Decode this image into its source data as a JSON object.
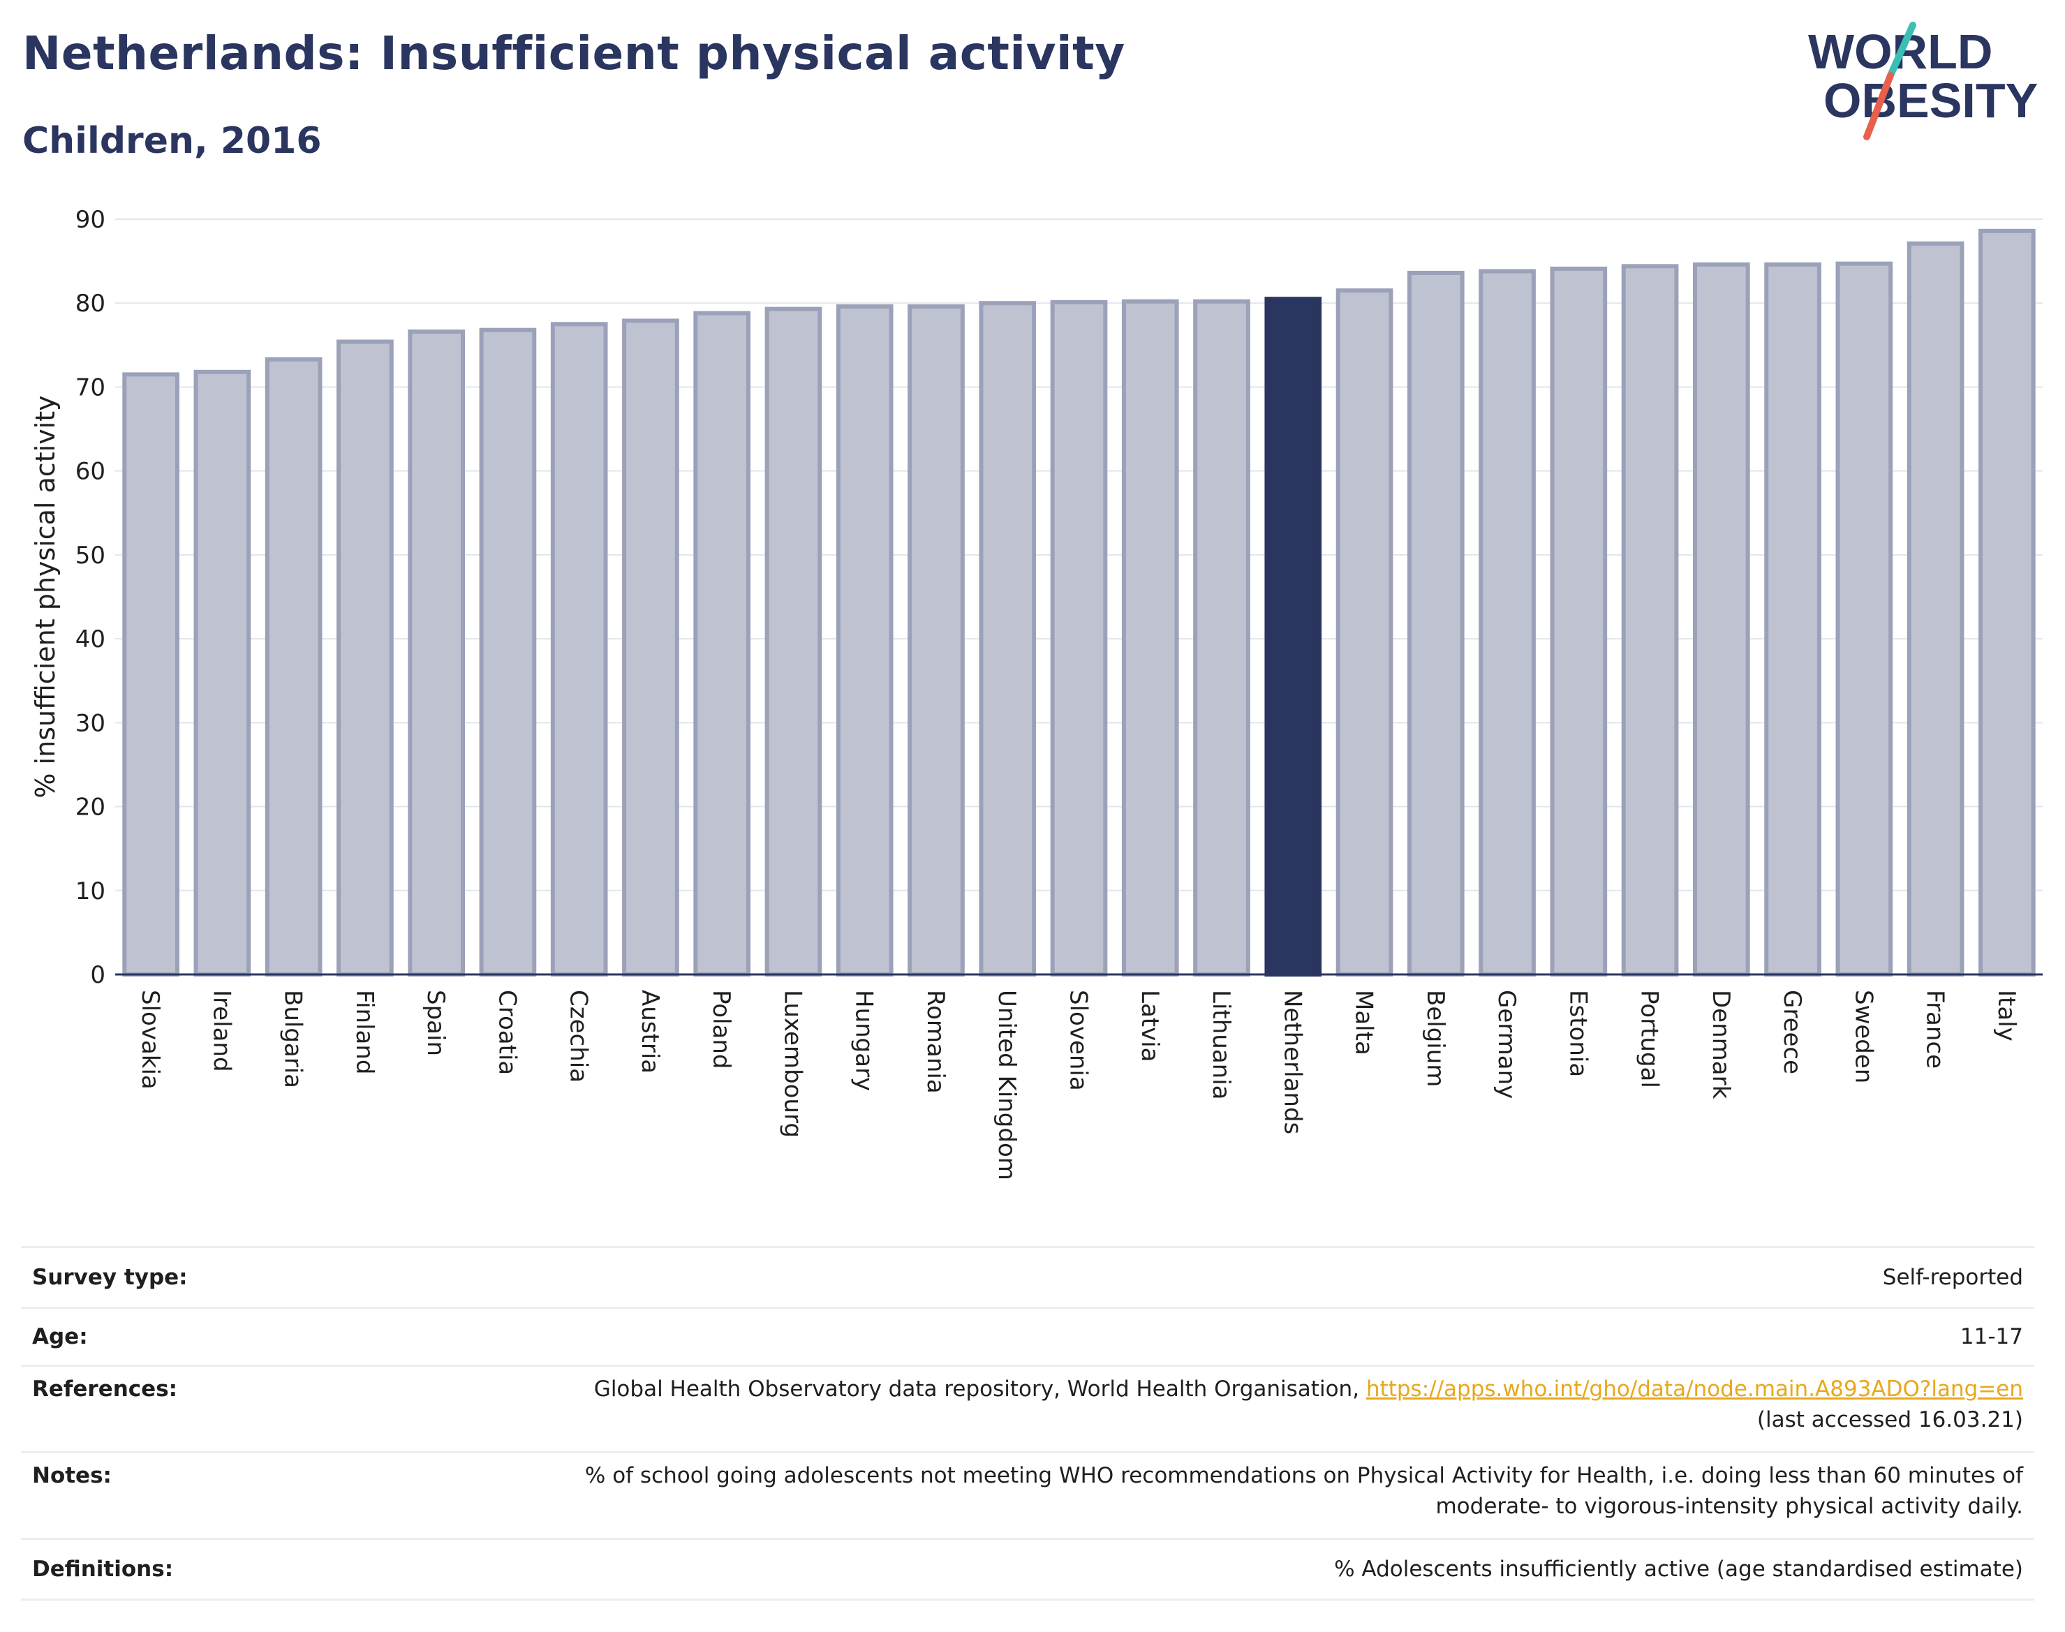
{
  "header": {
    "title": "Netherlands: Insufficient physical activity",
    "subtitle": "Children, 2016"
  },
  "logo": {
    "line1": "WORLD",
    "line2": "OBESITY",
    "text_color": "#2a3560",
    "slash_top": "#3bbfb5",
    "slash_bottom": "#e8604c"
  },
  "colors": {
    "bar": "#bfc2d0",
    "bar_edge": "#9ba1b8",
    "highlight": "#2a3560",
    "grid": "#e3e5ec",
    "axis": "#2a3560"
  },
  "chart_data": {
    "type": "bar",
    "title": "Netherlands: Insufficient physical activity",
    "subtitle": "Children, 2016",
    "ylabel": "% insufficient physical activity",
    "xlabel": "",
    "ylim": [
      0,
      90
    ],
    "yticks": [
      0,
      10,
      20,
      30,
      40,
      50,
      60,
      70,
      80,
      90
    ],
    "grid": true,
    "highlight": "Netherlands",
    "categories": [
      "Slovakia",
      "Ireland",
      "Bulgaria",
      "Finland",
      "Spain",
      "Croatia",
      "Czechia",
      "Austria",
      "Poland",
      "Luxembourg",
      "Hungary",
      "Romania",
      "United Kingdom",
      "Slovenia",
      "Latvia",
      "Lithuania",
      "Netherlands",
      "Malta",
      "Belgium",
      "Germany",
      "Estonia",
      "Portugal",
      "Denmark",
      "Greece",
      "Sweden",
      "France",
      "Italy"
    ],
    "values": [
      71.5,
      71.8,
      73.3,
      75.4,
      76.6,
      76.8,
      77.5,
      77.9,
      78.8,
      79.3,
      79.6,
      79.6,
      80.0,
      80.1,
      80.2,
      80.2,
      80.5,
      81.5,
      83.6,
      83.8,
      84.1,
      84.4,
      84.6,
      84.6,
      84.7,
      87.1,
      88.6
    ]
  },
  "info": {
    "survey_label": "Survey type:",
    "survey_value": "Self-reported",
    "age_label": "Age:",
    "age_value": "11-17",
    "references_label": "References:",
    "references_text": "Global Health Observatory data repository, World Health Organisation, ",
    "references_link": "https://apps.who.int/gho/data/node.main.A893ADO?lang=en",
    "references_accessed": "(last accessed 16.03.21)",
    "notes_label": "Notes:",
    "notes_line1": "% of school going adolescents not meeting WHO recommendations on Physical Activity for Health, i.e. doing less than 60 minutes of",
    "notes_line2": "moderate- to vigorous-intensity physical activity daily.",
    "definitions_label": "Definitions:",
    "definitions_value": "% Adolescents insufficiently active (age standardised estimate)"
  }
}
